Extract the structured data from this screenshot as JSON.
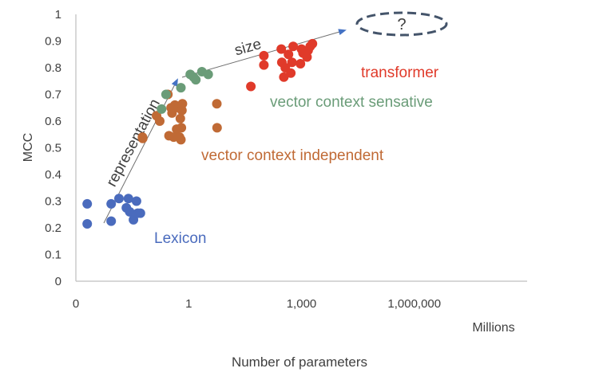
{
  "chart_data": {
    "type": "scatter",
    "title": "",
    "xlabel": "Millions",
    "ylabel": "MCC",
    "x_scale": "log10",
    "xlim": [
      0.001,
      1000000000
    ],
    "ylim": [
      0,
      1
    ],
    "x_ticks": [
      {
        "value": 0.001,
        "label": "0"
      },
      {
        "value": 1,
        "label": "1"
      },
      {
        "value": 1000,
        "label": "1,000"
      },
      {
        "value": 1000000,
        "label": "1,000,000"
      }
    ],
    "y_ticks": [
      {
        "value": 0,
        "label": "0"
      },
      {
        "value": 0.1,
        "label": "0.1"
      },
      {
        "value": 0.2,
        "label": "0.2"
      },
      {
        "value": 0.3,
        "label": "0.3"
      },
      {
        "value": 0.4,
        "label": "0.4"
      },
      {
        "value": 0.5,
        "label": "0.5"
      },
      {
        "value": 0.6,
        "label": "0.6"
      },
      {
        "value": 0.7,
        "label": "0.7"
      },
      {
        "value": 0.8,
        "label": "0.8"
      },
      {
        "value": 0.9,
        "label": "0.9"
      },
      {
        "value": 1,
        "label": "1"
      }
    ],
    "grid": false,
    "legend": "none",
    "series": [
      {
        "name": "Lexicon",
        "color": "#4a6bbd",
        "points": [
          {
            "x": 0.002,
            "y": 0.29
          },
          {
            "x": 0.002,
            "y": 0.215
          },
          {
            "x": 0.0087,
            "y": 0.29
          },
          {
            "x": 0.0087,
            "y": 0.225
          },
          {
            "x": 0.014,
            "y": 0.31
          },
          {
            "x": 0.022,
            "y": 0.275
          },
          {
            "x": 0.025,
            "y": 0.31
          },
          {
            "x": 0.027,
            "y": 0.26
          },
          {
            "x": 0.034,
            "y": 0.23
          },
          {
            "x": 0.041,
            "y": 0.3
          },
          {
            "x": 0.044,
            "y": 0.255
          },
          {
            "x": 0.052,
            "y": 0.255
          }
        ]
      },
      {
        "name": "vector context independent",
        "color": "#c06a35",
        "points": [
          {
            "x": 0.059,
            "y": 0.54
          },
          {
            "x": 0.06,
            "y": 0.535
          },
          {
            "x": 0.14,
            "y": 0.62
          },
          {
            "x": 0.17,
            "y": 0.6
          },
          {
            "x": 0.28,
            "y": 0.7
          },
          {
            "x": 0.3,
            "y": 0.545
          },
          {
            "x": 0.34,
            "y": 0.65
          },
          {
            "x": 0.36,
            "y": 0.63
          },
          {
            "x": 0.4,
            "y": 0.54
          },
          {
            "x": 0.43,
            "y": 0.66
          },
          {
            "x": 0.48,
            "y": 0.57
          },
          {
            "x": 0.54,
            "y": 0.65
          },
          {
            "x": 0.57,
            "y": 0.54
          },
          {
            "x": 0.6,
            "y": 0.61
          },
          {
            "x": 0.62,
            "y": 0.53
          },
          {
            "x": 0.64,
            "y": 0.575
          },
          {
            "x": 0.66,
            "y": 0.64
          },
          {
            "x": 0.68,
            "y": 0.665
          },
          {
            "x": 5.6,
            "y": 0.665
          },
          {
            "x": 5.7,
            "y": 0.575
          }
        ]
      },
      {
        "name": "vector context sensative",
        "color": "#6a9c78",
        "points": [
          {
            "x": 0.19,
            "y": 0.645
          },
          {
            "x": 0.25,
            "y": 0.7
          },
          {
            "x": 0.62,
            "y": 0.725
          },
          {
            "x": 1.1,
            "y": 0.775
          },
          {
            "x": 1.35,
            "y": 0.765
          },
          {
            "x": 1.55,
            "y": 0.755
          },
          {
            "x": 2.25,
            "y": 0.785
          },
          {
            "x": 3.3,
            "y": 0.775
          }
        ]
      },
      {
        "name": "transformer",
        "color": "#e03a2a",
        "points": [
          {
            "x": 45,
            "y": 0.73
          },
          {
            "x": 100,
            "y": 0.845
          },
          {
            "x": 100,
            "y": 0.81
          },
          {
            "x": 290,
            "y": 0.87
          },
          {
            "x": 300,
            "y": 0.82
          },
          {
            "x": 340,
            "y": 0.765
          },
          {
            "x": 370,
            "y": 0.8
          },
          {
            "x": 450,
            "y": 0.85
          },
          {
            "x": 520,
            "y": 0.78
          },
          {
            "x": 560,
            "y": 0.82
          },
          {
            "x": 600,
            "y": 0.88
          },
          {
            "x": 940,
            "y": 0.815
          },
          {
            "x": 1000,
            "y": 0.87
          },
          {
            "x": 1100,
            "y": 0.855
          },
          {
            "x": 1400,
            "y": 0.84
          },
          {
            "x": 1500,
            "y": 0.865
          },
          {
            "x": 1700,
            "y": 0.88
          },
          {
            "x": 1950,
            "y": 0.89
          }
        ]
      }
    ],
    "annotations": {
      "representation": "representation",
      "size": "size",
      "unknown": "?",
      "lexicon": "Lexicon",
      "vci": "vector context independent",
      "vcs": "vector context sensative",
      "transformer": "transformer"
    },
    "page_xlabel": "Number of parameters"
  }
}
